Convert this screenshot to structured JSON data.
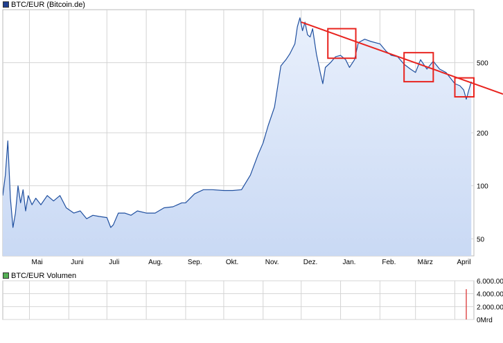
{
  "legend": {
    "price": {
      "label": "BTC/EUR (Bitcoin.de)",
      "color": "#1f3f8f"
    },
    "volume": {
      "label": "BTC/EUR Volumen",
      "color": "#55b055"
    }
  },
  "colors": {
    "line": "#1f4f9f",
    "fill_top": "#e9f0fc",
    "fill_bottom": "#c9d9f4",
    "grid": "#d4d4d4",
    "annotation": "#e8231e",
    "volume_spike": "#e05050"
  },
  "chart_data": [
    {
      "type": "line",
      "title": "BTC/EUR (Bitcoin.de)",
      "y_scale": "log",
      "ylim": [
        40,
        1000
      ],
      "y_ticks": [
        50,
        100,
        200,
        500
      ],
      "y_tick_labels": [
        "50",
        "100",
        "200",
        "500"
      ],
      "x_tick_labels": [
        "Mai",
        "Juni",
        "Juli",
        "Aug.",
        "Sep.",
        "Okt.",
        "Nov.",
        "Dez.",
        "Jan.",
        "Feb.",
        "März",
        "April"
      ],
      "xlim": [
        "2013-04-10",
        "2014-04-16"
      ],
      "x_ticks": [
        "2013-05-01",
        "2013-06-01",
        "2013-07-01",
        "2013-08-01",
        "2013-09-01",
        "2013-10-01",
        "2013-11-01",
        "2013-12-01",
        "2014-01-01",
        "2014-02-01",
        "2014-03-01",
        "2014-04-01"
      ],
      "grid": true,
      "series": [
        {
          "name": "BTC/EUR (Bitcoin.de)",
          "x": [
            "2013-04-10",
            "2013-04-12",
            "2013-04-14",
            "2013-04-16",
            "2013-04-18",
            "2013-04-20",
            "2013-04-22",
            "2013-04-24",
            "2013-04-26",
            "2013-04-28",
            "2013-04-30",
            "2013-05-03",
            "2013-05-06",
            "2013-05-10",
            "2013-05-15",
            "2013-05-20",
            "2013-05-25",
            "2013-05-30",
            "2013-06-05",
            "2013-06-10",
            "2013-06-15",
            "2013-06-20",
            "2013-06-25",
            "2013-07-01",
            "2013-07-04",
            "2013-07-06",
            "2013-07-10",
            "2013-07-15",
            "2013-07-20",
            "2013-07-25",
            "2013-08-01",
            "2013-08-08",
            "2013-08-15",
            "2013-08-22",
            "2013-08-29",
            "2013-09-01",
            "2013-09-08",
            "2013-09-15",
            "2013-09-22",
            "2013-10-01",
            "2013-10-08",
            "2013-10-15",
            "2013-10-22",
            "2013-10-28",
            "2013-11-01",
            "2013-11-05",
            "2013-11-10",
            "2013-11-15",
            "2013-11-19",
            "2013-11-22",
            "2013-11-26",
            "2013-11-28",
            "2013-11-30",
            "2013-12-02",
            "2013-12-04",
            "2013-12-06",
            "2013-12-08",
            "2013-12-10",
            "2013-12-13",
            "2013-12-16",
            "2013-12-18",
            "2013-12-20",
            "2013-12-24",
            "2013-12-28",
            "2014-01-01",
            "2014-01-05",
            "2014-01-08",
            "2014-01-12",
            "2014-01-15",
            "2014-01-20",
            "2014-01-25",
            "2014-02-01",
            "2014-02-06",
            "2014-02-10",
            "2014-02-15",
            "2014-02-20",
            "2014-02-25",
            "2014-03-01",
            "2014-03-05",
            "2014-03-10",
            "2014-03-15",
            "2014-03-20",
            "2014-03-25",
            "2014-04-01",
            "2014-04-05",
            "2014-04-08",
            "2014-04-10",
            "2014-04-12",
            "2014-04-14"
          ],
          "values": [
            88,
            115,
            180,
            85,
            58,
            70,
            100,
            80,
            95,
            72,
            88,
            78,
            85,
            78,
            88,
            82,
            88,
            75,
            70,
            72,
            65,
            68,
            67,
            66,
            58,
            60,
            70,
            70,
            68,
            72,
            70,
            70,
            75,
            76,
            80,
            80,
            90,
            95,
            95,
            94,
            94,
            95,
            115,
            150,
            175,
            220,
            280,
            480,
            520,
            560,
            640,
            800,
            900,
            760,
            850,
            720,
            700,
            780,
            560,
            440,
            380,
            470,
            500,
            540,
            550,
            520,
            470,
            520,
            650,
            680,
            660,
            640,
            580,
            550,
            540,
            490,
            460,
            440,
            520,
            460,
            510,
            460,
            440,
            380,
            370,
            350,
            310,
            350,
            390
          ]
        }
      ],
      "annotations": {
        "trendline": {
          "x": [
            "2013-12-01",
            "2014-04-16"
          ],
          "y": [
            850,
            380
          ]
        },
        "boxes": [
          {
            "x": [
              "2013-12-22",
              "2014-01-13"
            ],
            "y": [
              530,
              780
            ]
          },
          {
            "x": [
              "2014-02-20",
              "2014-03-15"
            ],
            "y": [
              390,
              570
            ]
          },
          {
            "x": [
              "2014-04-01",
              "2014-04-16"
            ],
            "y": [
              320,
              410
            ]
          }
        ]
      }
    },
    {
      "type": "bar",
      "title": "BTC/EUR Volumen",
      "ylim": [
        0,
        6000
      ],
      "y_ticks": [
        0,
        2000,
        4000,
        6000
      ],
      "y_tick_labels": [
        "0Mrd",
        "2.000.00",
        "4.000.00",
        "6.000.00"
      ],
      "x": [
        "2014-04-10"
      ],
      "values": [
        4700
      ],
      "grid": true
    }
  ]
}
